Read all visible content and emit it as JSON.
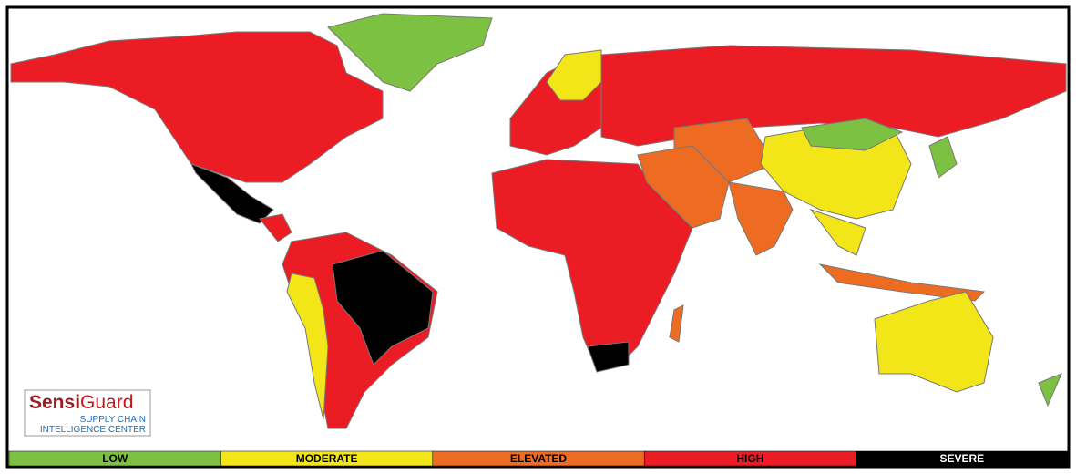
{
  "logo": {
    "brand_bold": "Sensi",
    "brand": "Guard",
    "line1": "SUPPLY CHAIN",
    "line2": "INTELLIGENCE CENTER"
  },
  "legend": [
    "LOW",
    "MODERATE",
    "ELEVATED",
    "HIGH",
    "SEVERE"
  ]
}
